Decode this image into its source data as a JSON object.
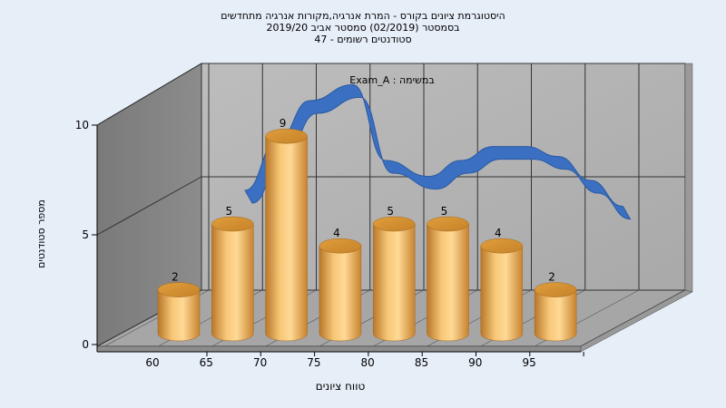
{
  "title": {
    "line1": "היסטוגרמת ציונים בקורס - המרת אנרגיה,מקורות אנרגיה מתחדשים",
    "line2": "בסמסטר  (02/2019)  סמסטר אביב 2019/20",
    "line3": "סטודנטים רשומים - 47"
  },
  "chart_data": {
    "type": "bar",
    "title": "",
    "subtitle": "במשימה : Exam_A",
    "xlabel": "טווח ציונים",
    "ylabel": "מספר סטודנטים",
    "categories": [
      "60",
      "65",
      "70",
      "75",
      "80",
      "85",
      "90",
      "95"
    ],
    "values": [
      2,
      5,
      9,
      4,
      5,
      5,
      4,
      2
    ],
    "data_labels": [
      "2",
      "5",
      "9",
      "4",
      "5",
      "5",
      "4",
      "2"
    ],
    "x_ticks": [
      "60",
      "65",
      "70",
      "75",
      "80",
      "85",
      "90",
      "95"
    ],
    "y_ticks": [
      "0",
      "5",
      "10"
    ],
    "ylim": [
      0,
      10
    ],
    "grid": true,
    "curve": {
      "type": "line",
      "x": [
        65,
        68,
        71,
        75,
        78,
        82,
        85,
        88,
        91,
        94,
        97,
        100
      ],
      "y": [
        5,
        7.5,
        9.5,
        10.3,
        6.5,
        5.7,
        6.5,
        7.2,
        7.2,
        6.7,
        5.5,
        4.2
      ]
    },
    "colors": {
      "bar": "#e8a84a",
      "curve": "#3a6fc2",
      "wall": "#b4b4b4",
      "floor": "#a8a8a8"
    }
  }
}
